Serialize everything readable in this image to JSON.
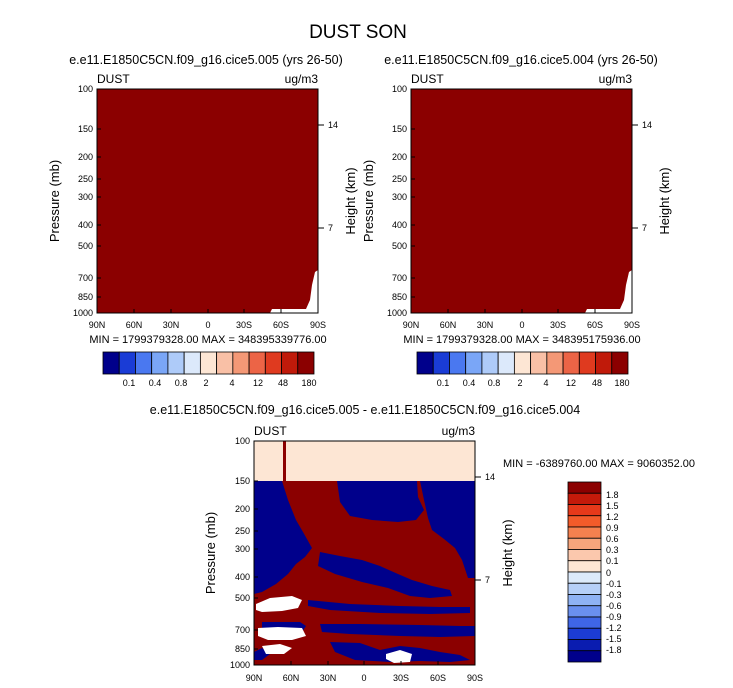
{
  "figure": {
    "title": "DUST SON"
  },
  "colors": {
    "dark_red": "#8b0000",
    "white": "#ffffff",
    "light_peach": "#fde6d4",
    "dark_blue": "#00008b"
  },
  "chart_data": [
    {
      "type": "heatmap",
      "title": "e.e11.E1850C5CN.f09_g16.cice5.005 (yrs 26-50)",
      "left_label": "DUST",
      "right_label": "ug/m3",
      "ylabel": "Pressure (mb)",
      "ylabel_right": "Height (km)",
      "xlabel": "",
      "x_ticks": [
        "90N",
        "60N",
        "30N",
        "0",
        "30S",
        "60S",
        "90S"
      ],
      "y_ticks": [
        "100",
        "150",
        "200",
        "250",
        "300",
        "400",
        "500",
        "700",
        "850",
        "1000"
      ],
      "y_ticks_right": [
        "14",
        "7"
      ],
      "ylim": [
        1000,
        100
      ],
      "min_max_text": "MIN = 1799379328.00  MAX = 348395339776.00",
      "colorbar_labels": [
        "0.1",
        "0.4",
        "0.8",
        "2",
        "4",
        "12",
        "48",
        "180"
      ],
      "colorbar_colors": [
        "#00008b",
        "#1a3cd6",
        "#4a78f0",
        "#7aa6f7",
        "#aecbf9",
        "#dce9fb",
        "#fde6d4",
        "#f9c0a6",
        "#f49876",
        "#ec6446",
        "#df3a1f",
        "#c01a0a",
        "#8b0000"
      ]
    },
    {
      "type": "heatmap",
      "title": "e.e11.E1850C5CN.f09_g16.cice5.004 (yrs 26-50)",
      "left_label": "DUST",
      "right_label": "ug/m3",
      "ylabel": "Pressure (mb)",
      "ylabel_right": "Height (km)",
      "xlabel": "",
      "x_ticks": [
        "90N",
        "60N",
        "30N",
        "0",
        "30S",
        "60S",
        "90S"
      ],
      "y_ticks": [
        "100",
        "150",
        "200",
        "250",
        "300",
        "400",
        "500",
        "700",
        "850",
        "1000"
      ],
      "y_ticks_right": [
        "14",
        "7"
      ],
      "ylim": [
        1000,
        100
      ],
      "min_max_text": "MIN = 1799379328.00  MAX = 348395175936.00",
      "colorbar_labels": [
        "0.1",
        "0.4",
        "0.8",
        "2",
        "4",
        "12",
        "48",
        "180"
      ],
      "colorbar_colors": [
        "#00008b",
        "#1a3cd6",
        "#4a78f0",
        "#7aa6f7",
        "#aecbf9",
        "#dce9fb",
        "#fde6d4",
        "#f9c0a6",
        "#f49876",
        "#ec6446",
        "#df3a1f",
        "#c01a0a",
        "#8b0000"
      ]
    },
    {
      "type": "heatmap",
      "title": "e.e11.E1850C5CN.f09_g16.cice5.005 - e.e11.E1850C5CN.f09_g16.cice5.004",
      "left_label": "DUST",
      "right_label": "ug/m3",
      "ylabel": "Pressure (mb)",
      "ylabel_right": "Height (km)",
      "xlabel": "",
      "x_ticks": [
        "90N",
        "60N",
        "30N",
        "0",
        "30S",
        "60S",
        "90S"
      ],
      "y_ticks": [
        "100",
        "150",
        "200",
        "250",
        "300",
        "400",
        "500",
        "700",
        "850",
        "1000"
      ],
      "y_ticks_right": [
        "14",
        "7"
      ],
      "ylim": [
        1000,
        100
      ],
      "min_max_text": "MIN = -6389760.00  MAX = 9060352.00",
      "colorbar_labels": [
        "1.8",
        "1.5",
        "1.2",
        "0.9",
        "0.6",
        "0.3",
        "0.1",
        "0",
        "-0.1",
        "-0.3",
        "-0.6",
        "-0.9",
        "-1.2",
        "-1.5",
        "-1.8"
      ],
      "colorbar_colors": [
        "#8b0000",
        "#c41a0a",
        "#e6391a",
        "#f25b2a",
        "#f5814f",
        "#f7a57c",
        "#fbc8ad",
        "#fde6d4",
        "#dceafb",
        "#b6cff8",
        "#8fb2f4",
        "#6a90ef",
        "#3f66e6",
        "#1c3cd4",
        "#0a1cb0",
        "#00008b"
      ]
    }
  ]
}
